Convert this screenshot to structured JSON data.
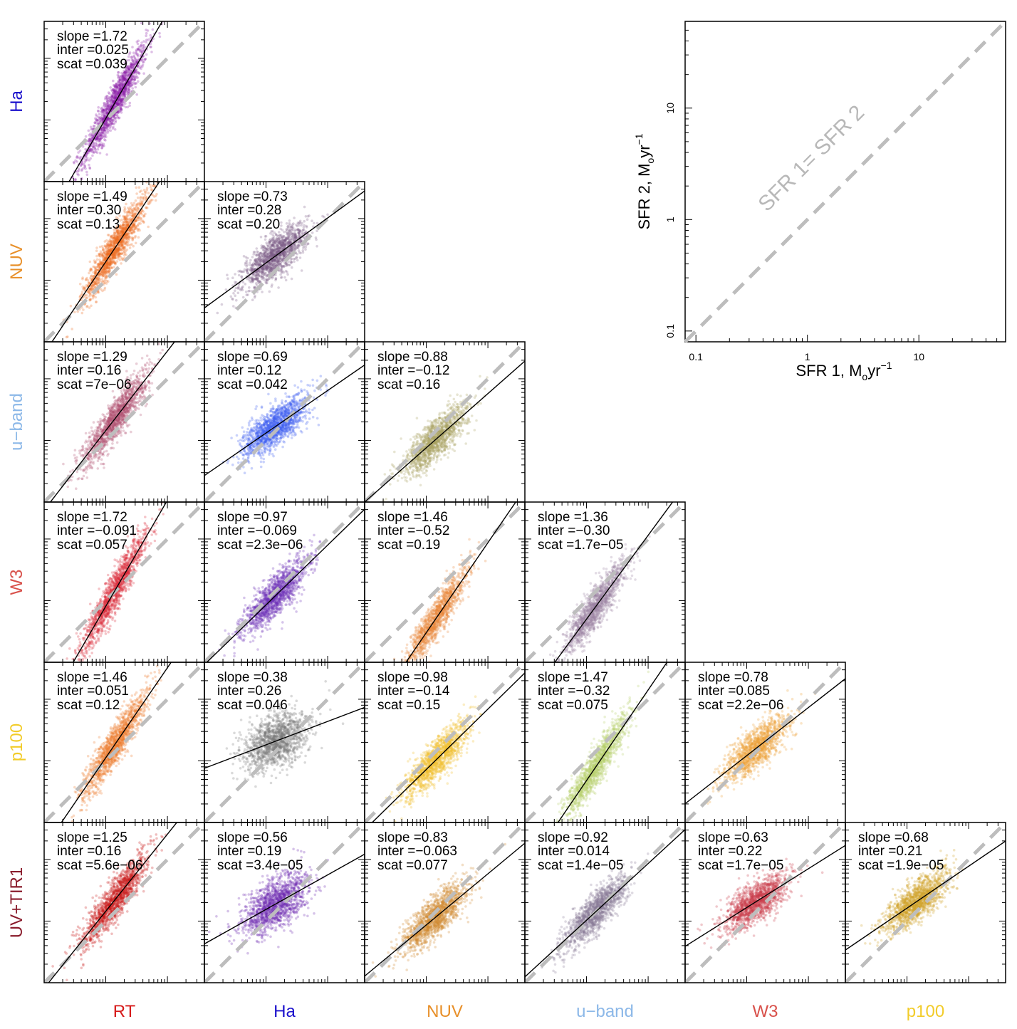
{
  "chart_data": {
    "type": "scatter",
    "title": "",
    "description_axes": "log-log scatter matrix of SFR indicators",
    "row_labels": [
      {
        "text": "Ha",
        "color": "#1a0fcc"
      },
      {
        "text": "NUV",
        "color": "#e8902a"
      },
      {
        "text": "u−band",
        "color": "#8cb8e8"
      },
      {
        "text": "W3",
        "color": "#d8504a"
      },
      {
        "text": "p100",
        "color": "#f2cc2a"
      },
      {
        "text": "UV+TIR1",
        "color": "#8a1c2c"
      }
    ],
    "col_labels": [
      {
        "text": "RT",
        "color": "#d61a1a"
      },
      {
        "text": "Ha",
        "color": "#1a0fcc"
      },
      {
        "text": "NUV",
        "color": "#e8902a"
      },
      {
        "text": "u−band",
        "color": "#8cb8e8"
      },
      {
        "text": "W3",
        "color": "#d8504a"
      },
      {
        "text": "p100",
        "color": "#f2cc2a"
      }
    ],
    "panels": [
      {
        "row": 0,
        "col": 0,
        "color": "#8a1aa6",
        "slope": 1.72,
        "inter": 0.025,
        "slope_text": "slope =1.72",
        "inter_text": "inter =0.025",
        "scat_text": "scat =0.039"
      },
      {
        "row": 1,
        "col": 0,
        "color": "#ec6a22",
        "slope": 1.49,
        "inter": 0.3,
        "slope_text": "slope =1.49",
        "inter_text": "inter =0.30",
        "scat_text": "scat =0.13"
      },
      {
        "row": 1,
        "col": 1,
        "color": "#7a5a86",
        "slope": 0.73,
        "inter": 0.28,
        "slope_text": "slope =0.73",
        "inter_text": "inter =0.28",
        "scat_text": "scat =0.20"
      },
      {
        "row": 2,
        "col": 0,
        "color": "#b05070",
        "slope": 1.29,
        "inter": 0.16,
        "slope_text": "slope =1.29",
        "inter_text": "inter =0.16",
        "scat_text": "scat =7e−06"
      },
      {
        "row": 2,
        "col": 1,
        "color": "#3c5ef0",
        "slope": 0.69,
        "inter": 0.12,
        "slope_text": "slope =0.69",
        "inter_text": "inter =0.12",
        "scat_text": "scat =0.042"
      },
      {
        "row": 2,
        "col": 2,
        "color": "#a8a060",
        "slope": 0.88,
        "inter": -0.12,
        "slope_text": "slope =0.88",
        "inter_text": "inter =−0.12",
        "scat_text": "scat =0.16"
      },
      {
        "row": 3,
        "col": 0,
        "color": "#dc2a3a",
        "slope": 1.72,
        "inter": -0.091,
        "slope_text": "slope =1.72",
        "inter_text": "inter =−0.091",
        "scat_text": "scat =0.057"
      },
      {
        "row": 3,
        "col": 1,
        "color": "#6a30b8",
        "slope": 0.97,
        "inter": -0.069,
        "slope_text": "slope =0.97",
        "inter_text": "inter =−0.069",
        "scat_text": "scat =2.3e−06"
      },
      {
        "row": 3,
        "col": 2,
        "color": "#e88a3c",
        "slope": 1.46,
        "inter": -0.52,
        "slope_text": "slope =1.46",
        "inter_text": "inter =−0.52",
        "scat_text": "scat =0.19"
      },
      {
        "row": 3,
        "col": 3,
        "color": "#9a80a0",
        "slope": 1.36,
        "inter": -0.3,
        "slope_text": "slope =1.36",
        "inter_text": "inter =−0.30",
        "scat_text": "scat =1.7e−05"
      },
      {
        "row": 4,
        "col": 0,
        "color": "#ec7a2a",
        "slope": 1.46,
        "inter": 0.051,
        "slope_text": "slope =1.46",
        "inter_text": "inter =0.051",
        "scat_text": "scat =0.12"
      },
      {
        "row": 4,
        "col": 1,
        "color": "#7a7a7a",
        "slope": 0.38,
        "inter": 0.26,
        "slope_text": "slope =0.38",
        "inter_text": "inter =0.26",
        "scat_text": "scat =0.046"
      },
      {
        "row": 4,
        "col": 2,
        "color": "#f2c02a",
        "slope": 0.98,
        "inter": -0.14,
        "slope_text": "slope =0.98",
        "inter_text": "inter =−0.14",
        "scat_text": "scat =0.15"
      },
      {
        "row": 4,
        "col": 3,
        "color": "#b8d06a",
        "slope": 1.47,
        "inter": -0.32,
        "slope_text": "slope =1.47",
        "inter_text": "inter =−0.32",
        "scat_text": "scat =0.075"
      },
      {
        "row": 4,
        "col": 4,
        "color": "#eca03a",
        "slope": 0.78,
        "inter": 0.085,
        "slope_text": "slope =0.78",
        "inter_text": "inter =0.085",
        "scat_text": "scat =2.2e−06"
      },
      {
        "row": 5,
        "col": 0,
        "color": "#c81a1a",
        "slope": 1.25,
        "inter": 0.16,
        "slope_text": "slope =1.25",
        "inter_text": "inter =0.16",
        "scat_text": "scat =5.6e−06"
      },
      {
        "row": 5,
        "col": 1,
        "color": "#6a28b0",
        "slope": 0.56,
        "inter": 0.19,
        "slope_text": "slope =0.56",
        "inter_text": "inter =0.19",
        "scat_text": "scat =3.4e−05"
      },
      {
        "row": 5,
        "col": 2,
        "color": "#d08a30",
        "slope": 0.83,
        "inter": -0.063,
        "slope_text": "slope =0.83",
        "inter_text": "inter =−0.063",
        "scat_text": "scat =0.077"
      },
      {
        "row": 5,
        "col": 3,
        "color": "#8a7a98",
        "slope": 0.92,
        "inter": 0.014,
        "slope_text": "slope =0.92",
        "inter_text": "inter =0.014",
        "scat_text": "scat =1.4e−05"
      },
      {
        "row": 5,
        "col": 4,
        "color": "#c83a48",
        "slope": 0.63,
        "inter": 0.22,
        "slope_text": "slope =0.63",
        "inter_text": "inter =0.22",
        "scat_text": "scat =1.7e−05"
      },
      {
        "row": 5,
        "col": 5,
        "color": "#d0a028",
        "slope": 0.68,
        "inter": 0.21,
        "slope_text": "slope =0.68",
        "inter_text": "inter =0.21",
        "scat_text": "scat =1.9e−05"
      }
    ],
    "key_panel": {
      "xlabel": "SFR 1, M",
      "xlabel_sub": "o",
      "xlabel_unit": "yr",
      "xlabel_sup": "−1",
      "ylabel": "SFR 2, M",
      "ylabel_sub": "o",
      "ylabel_unit": "yr",
      "ylabel_sup": "−1",
      "xticks": [
        "0.1",
        "1",
        "10"
      ],
      "yticks": [
        "0.1",
        "1",
        "10"
      ],
      "xlim": [
        0.08,
        60
      ],
      "ylim": [
        0.08,
        60
      ],
      "identity_label": "SFR 1= SFR 2"
    }
  }
}
